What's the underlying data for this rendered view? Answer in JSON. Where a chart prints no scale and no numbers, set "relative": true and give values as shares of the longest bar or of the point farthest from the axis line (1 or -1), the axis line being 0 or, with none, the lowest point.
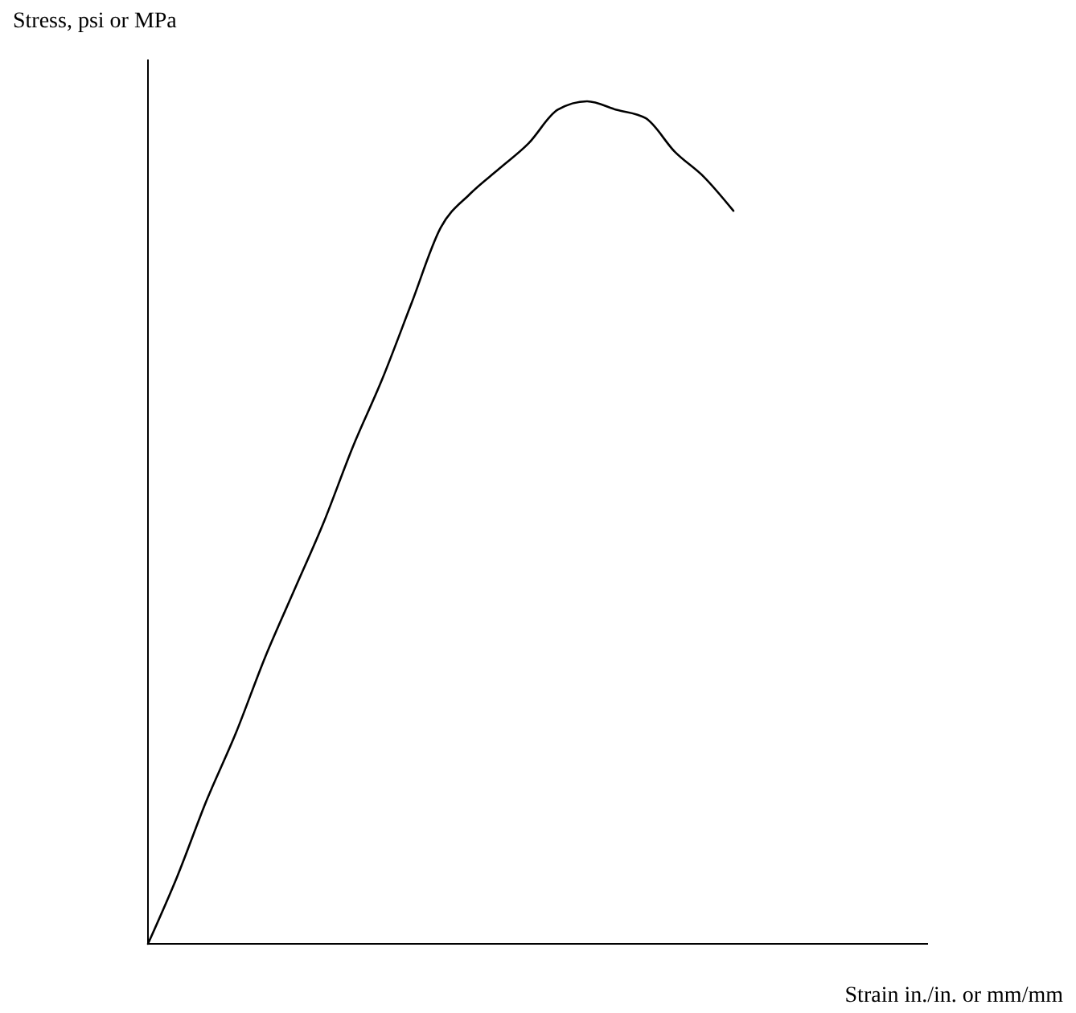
{
  "chart_data": {
    "type": "line",
    "relative": true,
    "xlabel": "Strain in./in. or mm/mm",
    "ylabel": "Stress, psi or MPa",
    "categories": [
      null,
      null,
      null,
      null,
      null,
      null,
      null,
      null,
      null,
      null,
      null,
      null,
      null,
      null,
      null,
      null,
      null,
      null,
      null,
      null,
      null,
      null,
      null,
      null,
      null,
      null,
      null
    ],
    "series": [
      {
        "color": "#000000",
        "values": [
          0,
          0.08,
          0.17,
          0.25,
          0.34,
          0.42,
          0.5,
          0.59,
          0.67,
          0.76,
          0.85,
          0.89,
          0.92,
          0.95,
          0.99,
          1.0,
          0.99,
          0.98,
          0.94,
          0.91,
          0.87,
          null,
          null,
          null,
          null,
          null,
          null
        ]
      }
    ]
  }
}
